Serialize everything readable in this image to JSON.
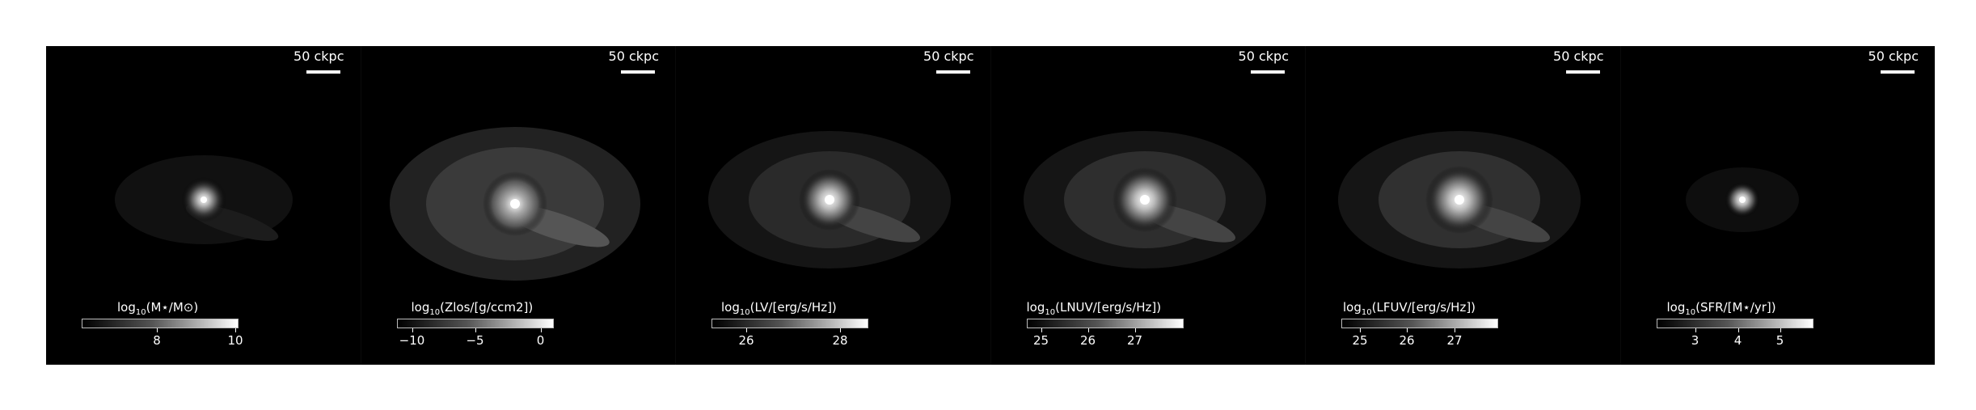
{
  "scale_label": "50 ckpc",
  "panels": [
    {
      "title_prefix": "log",
      "title_sub": "10",
      "title_rest": "(M⋆/M⊙)",
      "ticks": [
        {
          "label": "8",
          "frac": 0.48
        },
        {
          "label": "10",
          "frac": 0.98
        }
      ]
    },
    {
      "title_prefix": "log",
      "title_sub": "10",
      "title_rest": "(Zlos/[g/ccm2])",
      "ticks": [
        {
          "label": "−10",
          "frac": 0.1
        },
        {
          "label": "−5",
          "frac": 0.5
        },
        {
          "label": "0",
          "frac": 0.92
        }
      ]
    },
    {
      "title_prefix": "log",
      "title_sub": "10",
      "title_rest": "(LV/[erg/s/Hz])",
      "ticks": [
        {
          "label": "26",
          "frac": 0.22
        },
        {
          "label": "28",
          "frac": 0.82
        }
      ]
    },
    {
      "title_prefix": "log",
      "title_sub": "10",
      "title_rest": "(LNUV/[erg/s/Hz])",
      "ticks": [
        {
          "label": "25",
          "frac": 0.09
        },
        {
          "label": "26",
          "frac": 0.39
        },
        {
          "label": "27",
          "frac": 0.69
        }
      ]
    },
    {
      "title_prefix": "log",
      "title_sub": "10",
      "title_rest": "(LFUV/[erg/s/Hz])",
      "ticks": [
        {
          "label": "25",
          "frac": 0.12
        },
        {
          "label": "26",
          "frac": 0.42
        },
        {
          "label": "27",
          "frac": 0.72
        }
      ]
    },
    {
      "title_prefix": "log",
      "title_sub": "10",
      "title_rest": "(SFR/[M⋆/yr])",
      "ticks": [
        {
          "label": "3",
          "frac": 0.25
        },
        {
          "label": "4",
          "frac": 0.52
        },
        {
          "label": "5",
          "frac": 0.79
        }
      ]
    }
  ]
}
